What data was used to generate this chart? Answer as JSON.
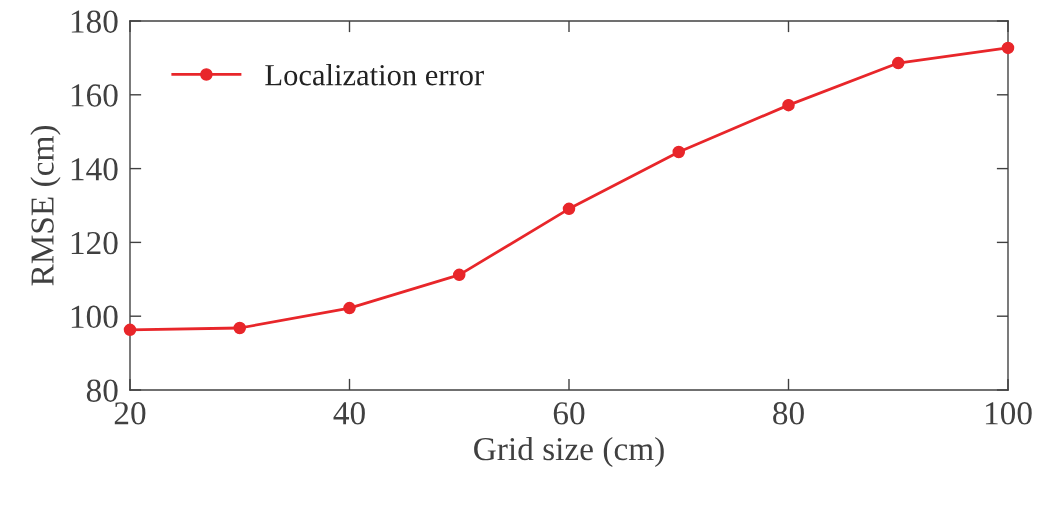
{
  "chart_data": {
    "type": "line",
    "xlabel": "Grid size (cm)",
    "ylabel": "RMSE (cm)",
    "x": [
      20,
      30,
      40,
      50,
      60,
      70,
      80,
      90,
      100
    ],
    "series": [
      {
        "name": "Localization error",
        "color": "#e8262a",
        "values": [
          96.3,
          96.8,
          102.2,
          111.2,
          129.1,
          144.5,
          157.2,
          168.6,
          172.7
        ]
      }
    ],
    "xlim": [
      20,
      100
    ],
    "ylim": [
      80,
      180
    ],
    "xticks": [
      20,
      40,
      60,
      80,
      100
    ],
    "yticks": [
      80,
      100,
      120,
      140,
      160,
      180
    ],
    "grid": false,
    "legend": "top left",
    "marker": "circle",
    "line_style": "solid"
  }
}
